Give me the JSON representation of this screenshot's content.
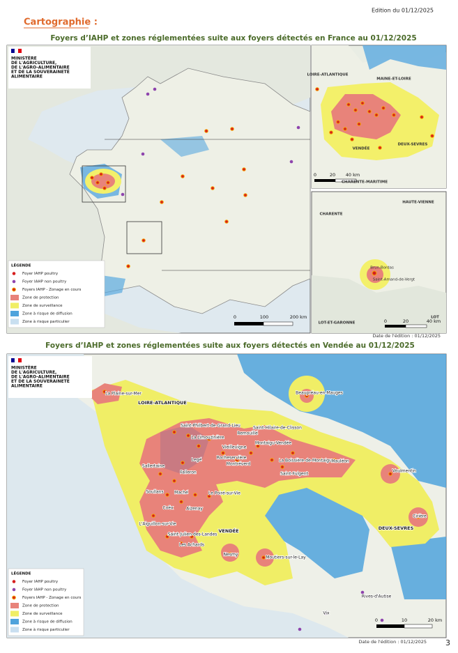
{
  "header": {
    "edition": "Edition du 01/12/2025",
    "section": "Cartographie :"
  },
  "map1": {
    "title": "Foyers d’IAHP et zones réglementées suite aux foyers détectés en France au 01/12/2025",
    "ministry": [
      "MINISTÈRE",
      "DE L'AGRICULTURE,",
      "DE L'AGRO-ALIMENTAIRE",
      "ET DE LA SOUVERAINETÉ",
      "ALIMENTAIRE"
    ],
    "legend": [
      "LÉGENDE",
      "Foyer IAHP poultry",
      "Foyer IAHP non poultry",
      "Foyers IAHP - Zonage en cours",
      "Zone de protection",
      "Zone de surveillance",
      "Zone à risque de diffusion",
      "Zone à risque particulier"
    ],
    "scale": [
      "0",
      "100",
      "200 km"
    ],
    "inset1": {
      "labels": [
        "LOIRE-ATLANTIQUE",
        "MAINE-ET-LOIRE",
        "VENDÉE",
        "DEUX-SEVRES",
        "CHARENTE-MARITIME"
      ],
      "scale": [
        "0",
        "20",
        "40 km"
      ]
    },
    "inset2": {
      "labels": [
        "HAUTE-VIENNE",
        "CHARENTE",
        "Brun-Bordas",
        "Saint-Amand-de-Vergt",
        "LOT-ET-GARONNE",
        "LOT"
      ],
      "scale": [
        "0",
        "20",
        "40 km"
      ]
    },
    "edition_date": "Date de l'édition : 01/12/2025"
  },
  "map2": {
    "title": "Foyers d’IAHP et zones réglementées suite aux foyers détectés en Vendée au 01/12/2025",
    "ministry": [
      "MINISTÈRE",
      "DE L'AGRICULTURE,",
      "DE L'AGRO-ALIMENTAIRE",
      "ET DE LA SOUVERAINETÉ",
      "ALIMENTAIRE"
    ],
    "labels": [
      "La Plaine-sur-Mer",
      "LOIRE-ATLANTIQUE",
      "Saint-Philbert-de-Grand-Lieu",
      "La Limouzinière",
      "Vieillevigne",
      "Rocheservière",
      "Saint-Hilaire-de-Clisson",
      "Remouillé",
      "Montaigu-Vendée",
      "Montréverd",
      "Sallertaine",
      "Legé",
      "Falleron",
      "La Boissière-de-Montaigu",
      "Mauléon",
      "Saint-Fulgent",
      "Beaupréau-en-Mauges",
      "Voulmentin",
      "Soullans",
      "Maché",
      "Aizenay",
      "Le Poiré-sur-Vie",
      "Coëx",
      "L'Aiguillon-sur-Vie",
      "Saint-Julien-des-Landes",
      "Les Achards",
      "VENDÉE",
      "Nesmy",
      "Moutiers-sur-le-Lay",
      "Cirière",
      "DEUX-SEVRES",
      "Rives-d'Autise",
      "Vix"
    ],
    "legend": [
      "LÉGENDE",
      "Foyer IAHP poultry",
      "Foyer IAHP non poultry",
      "Foyers IAHP - Zonage en cours",
      "Zone de protection",
      "Zone de surveillance",
      "Zone à risque de diffusion",
      "Zone à risque particulier"
    ],
    "scale": [
      "0",
      "10",
      "20 km"
    ],
    "edition_date": "Date de l'édition : 01/12/2025"
  },
  "page_number": "3"
}
